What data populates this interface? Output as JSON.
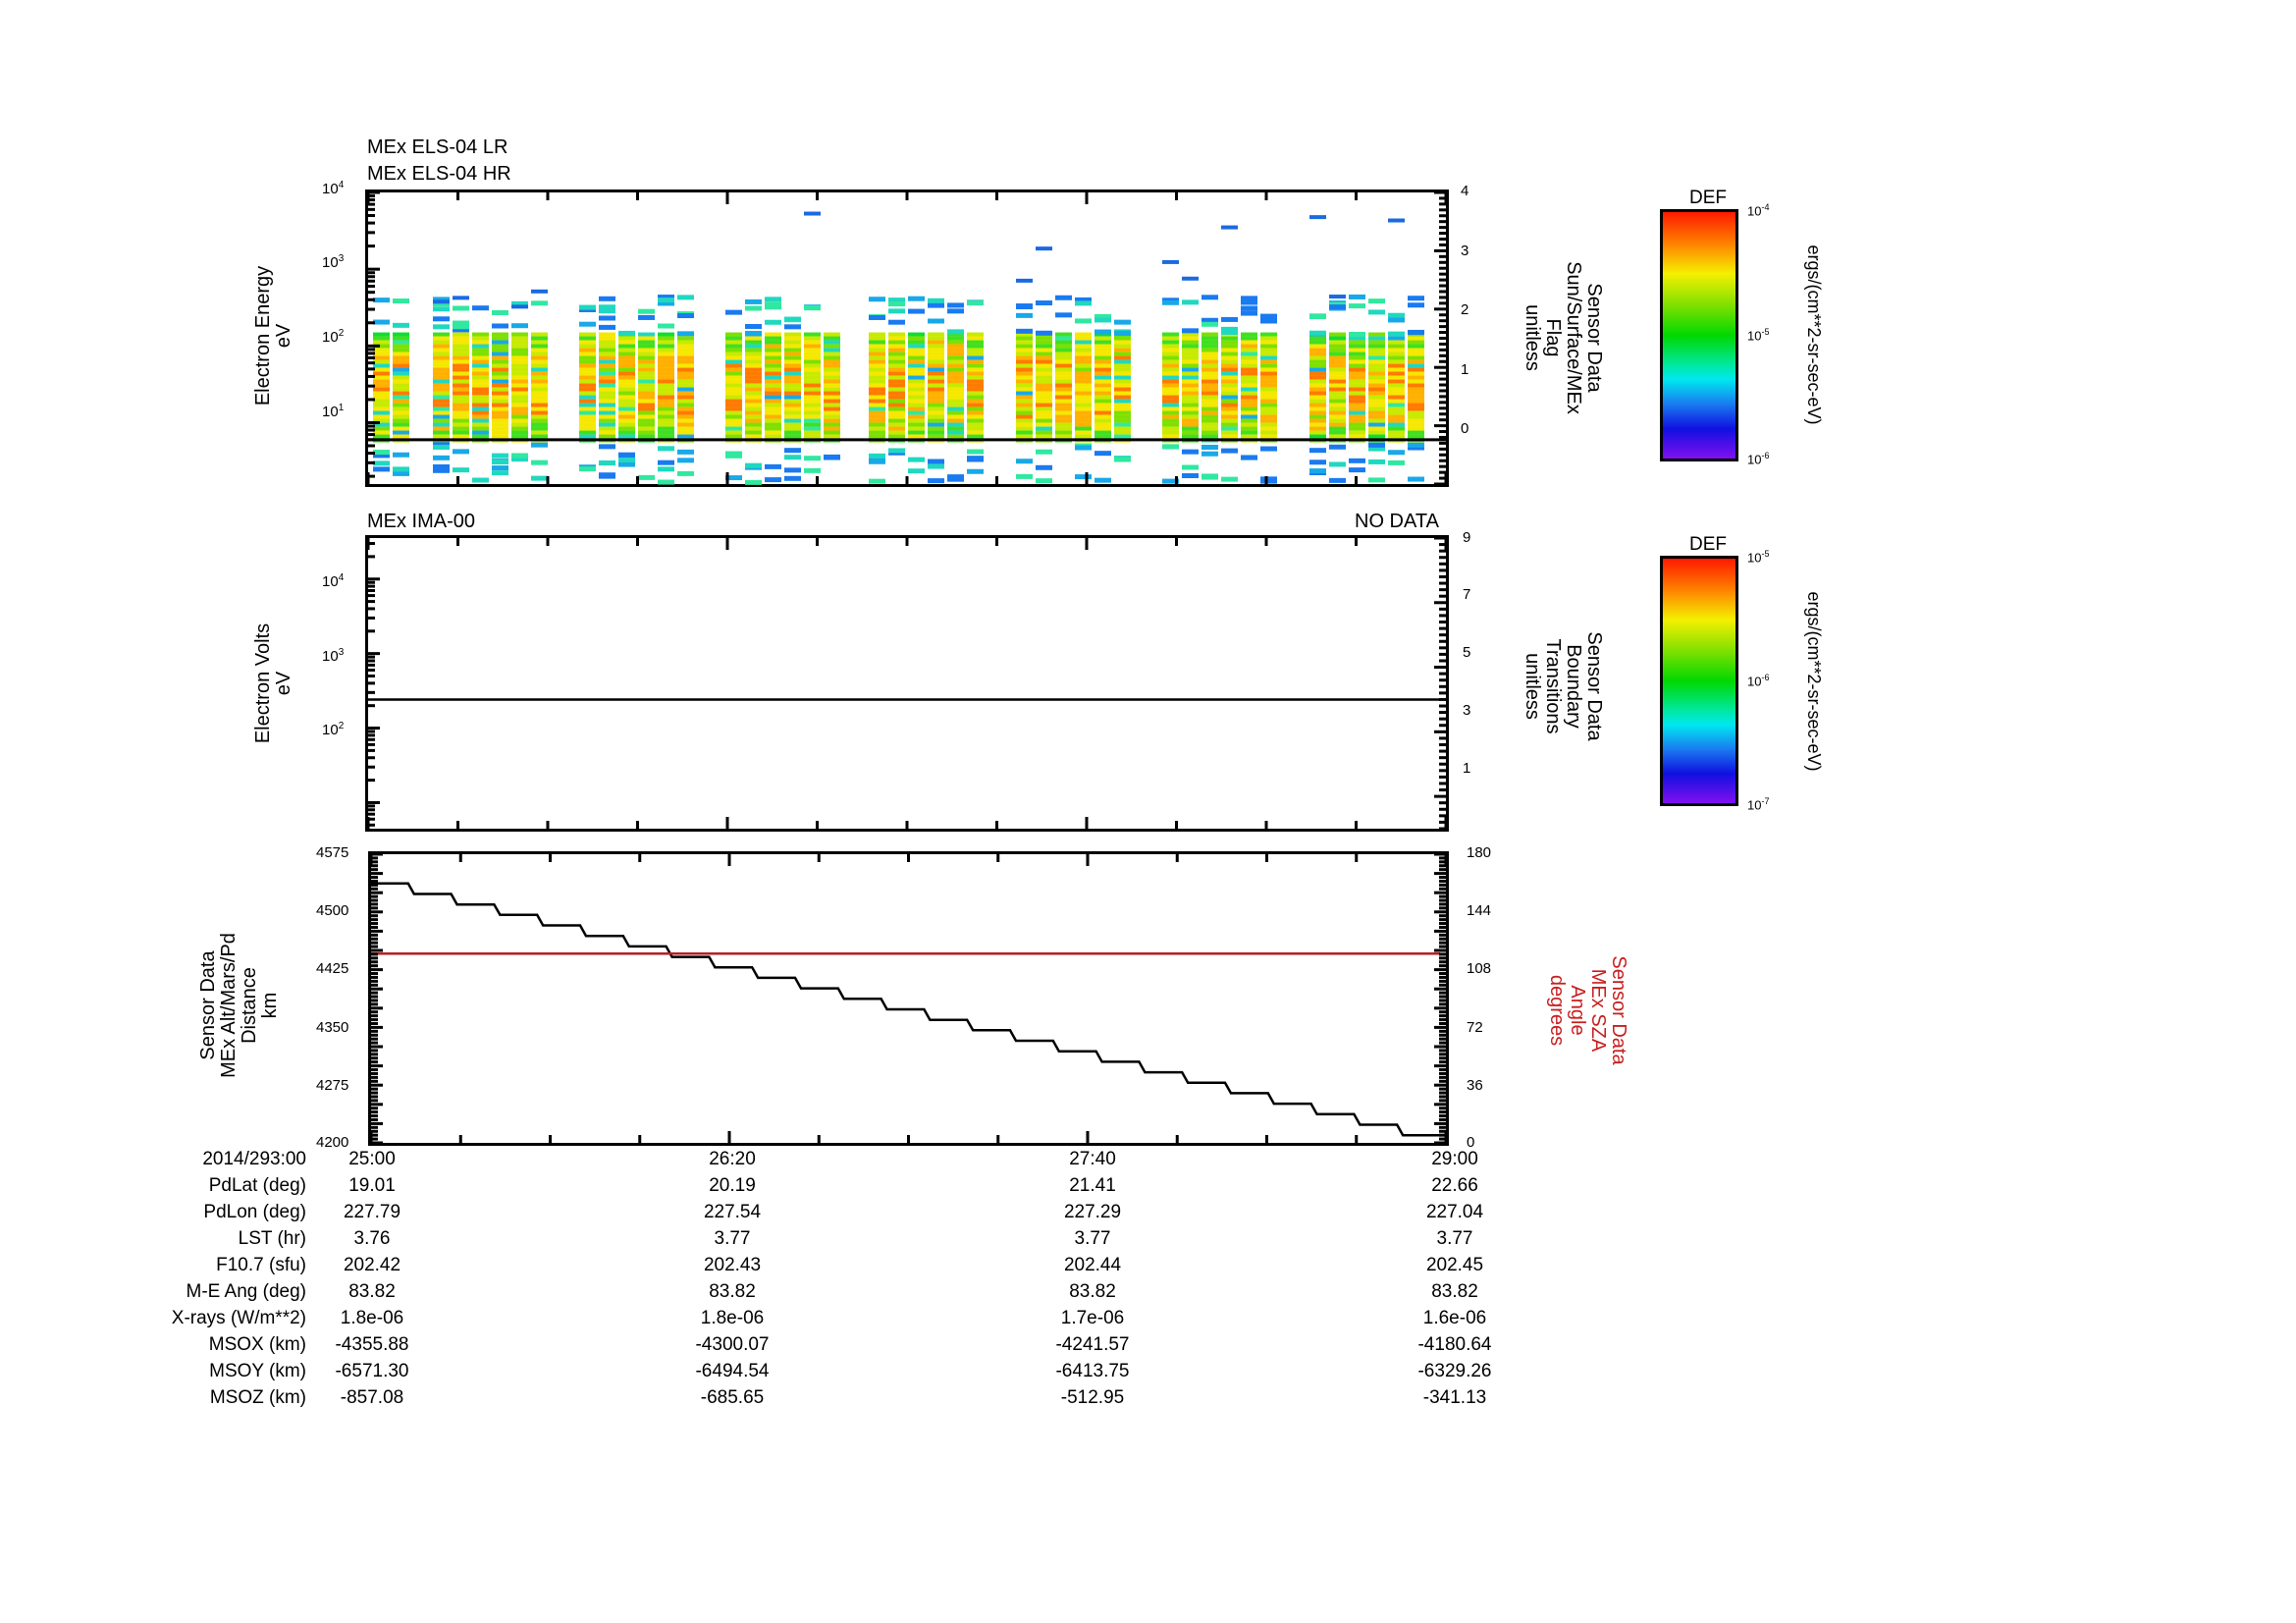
{
  "chart_data": [
    {
      "type": "heatmap",
      "title": [
        "MEx ELS-04 LR",
        "MEx ELS-04 HR"
      ],
      "ylabel": [
        "Electron Energy",
        "eV"
      ],
      "yscale": "log",
      "ylim": [
        1,
        10000
      ],
      "yticks": [
        "10^1",
        "10^2",
        "10^3",
        "10^4"
      ],
      "y2label": [
        "Sensor Data",
        "Sun/Surface/MEx",
        "Flag",
        "unitless"
      ],
      "y2lim": [
        -1,
        4
      ],
      "y2ticks": [
        "0",
        "1",
        "2",
        "3",
        "4"
      ],
      "overlay_line": {
        "series": "Sun/Surface/MEx Flag",
        "value": 0,
        "color": "#000000"
      },
      "colorbar": {
        "title": "DEF",
        "min": "10^-6",
        "mid": "10^-5",
        "max": "10^-4",
        "units": "ergs/(cm**2-sr-sec-eV)"
      },
      "description": "Electron spectrogram with vertical column bursts; dense emission ~6-150 eV, sparse blue pixels up to ~5 keV"
    },
    {
      "type": "heatmap",
      "title": "MEx IMA-00",
      "status": "NO DATA",
      "ylabel": [
        "Electron Volts",
        "eV"
      ],
      "yscale": "log",
      "yticks": [
        "10^2",
        "10^3",
        "10^4"
      ],
      "y2label": [
        "Sensor Data",
        "Boundary",
        "Transitions",
        "unitless"
      ],
      "y2lim": [
        0,
        9
      ],
      "y2ticks": [
        "1",
        "3",
        "5",
        "7",
        "9"
      ],
      "overlay_line": {
        "series": "Boundary Transitions",
        "value": 4,
        "color": "#000000"
      },
      "colorbar": {
        "title": "DEF",
        "min": "10^-7",
        "mid": "10^-6",
        "max": "10^-5",
        "units": "ergs/(cm**2-sr-sec-eV)"
      }
    },
    {
      "type": "line",
      "ylabel": [
        "Sensor Data",
        "MEx Alt/Mars/Pd",
        "Distance",
        "km"
      ],
      "ylim": [
        4200,
        4575
      ],
      "yticks": [
        4200,
        4275,
        4350,
        4425,
        4500,
        4575
      ],
      "y2label": [
        "Sensor Data",
        "MEx SZA",
        "Angle",
        "degrees"
      ],
      "y2lim": [
        0,
        180
      ],
      "y2ticks": [
        0,
        36,
        72,
        108,
        144,
        180
      ],
      "x": [
        "25:00",
        "26:20",
        "27:40",
        "29:00"
      ],
      "series": [
        {
          "name": "MEx Alt/Mars/Pd Distance (km)",
          "color": "#000000",
          "start": 4537,
          "end": 4210,
          "shape": "staircase"
        },
        {
          "name": "MEx SZA Angle (degrees)",
          "color": "#b22222",
          "value": 118
        }
      ]
    }
  ],
  "panel1": {
    "title_line1": "MEx ELS-04 LR",
    "title_line2": "MEx ELS-04 HR",
    "ylabel_line1": "Electron Energy",
    "ylabel_line2": "eV",
    "yticks": [
      {
        "base": "10",
        "exp": "1"
      },
      {
        "base": "10",
        "exp": "2"
      },
      {
        "base": "10",
        "exp": "3"
      },
      {
        "base": "10",
        "exp": "4"
      }
    ],
    "y2ticks": [
      "0",
      "1",
      "2",
      "3",
      "4"
    ],
    "y2label": [
      "Sensor Data",
      "Sun/Surface/MEx",
      "Flag",
      "unitless"
    ]
  },
  "panel2": {
    "title": "MEx IMA-00",
    "status": "NO DATA",
    "ylabel_line1": "Electron Volts",
    "ylabel_line2": "eV",
    "yticks": [
      {
        "base": "10",
        "exp": "2"
      },
      {
        "base": "10",
        "exp": "3"
      },
      {
        "base": "10",
        "exp": "4"
      }
    ],
    "y2ticks": [
      "1",
      "3",
      "5",
      "7",
      "9"
    ],
    "y2label": [
      "Sensor Data",
      "Boundary",
      "Transitions",
      "unitless"
    ]
  },
  "panel3": {
    "ylabel": [
      "Sensor Data",
      "MEx Alt/Mars/Pd",
      "Distance",
      "km"
    ],
    "yticks": [
      "4200",
      "4275",
      "4350",
      "4425",
      "4500",
      "4575"
    ],
    "y2ticks": [
      "0",
      "36",
      "72",
      "108",
      "144",
      "180"
    ],
    "y2label": [
      "Sensor Data",
      "MEx SZA",
      "Angle",
      "degrees"
    ],
    "sza_color": "#b22222"
  },
  "colorbar1": {
    "title": "DEF",
    "top": {
      "base": "10",
      "exp": "-4"
    },
    "mid": {
      "base": "10",
      "exp": "-5"
    },
    "bottom": {
      "base": "10",
      "exp": "-6"
    },
    "units": "ergs/(cm**2-sr-sec-eV)"
  },
  "colorbar2": {
    "title": "DEF",
    "top": {
      "base": "10",
      "exp": "-5"
    },
    "mid": {
      "base": "10",
      "exp": "-6"
    },
    "bottom": {
      "base": "10",
      "exp": "-7"
    },
    "units": "ergs/(cm**2-sr-sec-eV)"
  },
  "ephemeris": {
    "rows": [
      {
        "label": "2014/293:00",
        "values": [
          "25:00",
          "26:20",
          "27:40",
          "29:00"
        ]
      },
      {
        "label": "PdLat (deg)",
        "values": [
          "19.01",
          "20.19",
          "21.41",
          "22.66"
        ]
      },
      {
        "label": "PdLon (deg)",
        "values": [
          "227.79",
          "227.54",
          "227.29",
          "227.04"
        ]
      },
      {
        "label": "LST (hr)",
        "values": [
          "3.76",
          "3.77",
          "3.77",
          "3.77"
        ]
      },
      {
        "label": "F10.7 (sfu)",
        "values": [
          "202.42",
          "202.43",
          "202.44",
          "202.45"
        ]
      },
      {
        "label": "M-E Ang (deg)",
        "values": [
          "83.82",
          "83.82",
          "83.82",
          "83.82"
        ]
      },
      {
        "label": "X-rays (W/m**2)",
        "values": [
          "1.8e-06",
          "1.8e-06",
          "1.7e-06",
          "1.6e-06"
        ]
      },
      {
        "label": "MSOX (km)",
        "values": [
          "-4355.88",
          "-4300.07",
          "-4241.57",
          "-4180.64"
        ]
      },
      {
        "label": "MSOY (km)",
        "values": [
          "-6571.30",
          "-6494.54",
          "-6413.75",
          "-6329.26"
        ]
      },
      {
        "label": "MSOZ (km)",
        "values": [
          "-857.08",
          "-685.65",
          "-512.95",
          "-341.13"
        ]
      }
    ]
  }
}
